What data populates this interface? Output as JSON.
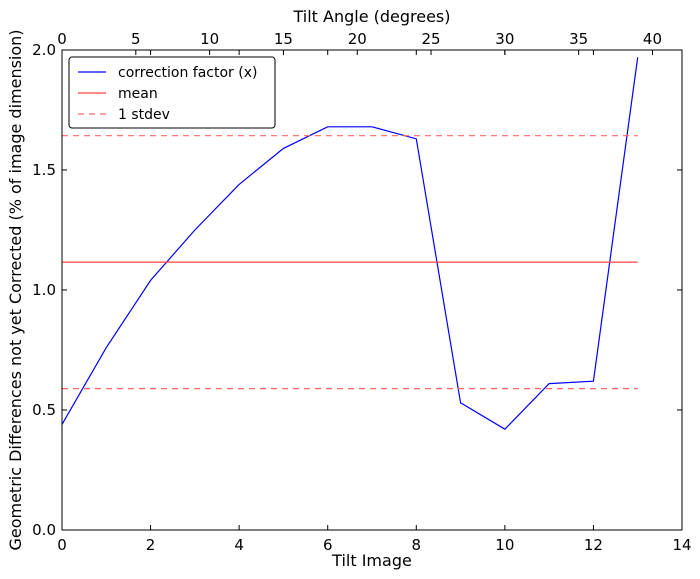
{
  "chart_data": {
    "type": "line",
    "xlabel": "Tilt Image",
    "ylabel": "Geometric Differences not yet Corrected (% of image dimension)",
    "top_xlabel": "Tilt Angle (degrees)",
    "xlim": [
      0,
      14
    ],
    "ylim": [
      0.0,
      2.0
    ],
    "top_xlim": [
      0,
      42
    ],
    "x_ticks": [
      0,
      2,
      4,
      6,
      8,
      10,
      12,
      14
    ],
    "x_tick_labels": [
      "0",
      "2",
      "4",
      "6",
      "8",
      "10",
      "12",
      "14"
    ],
    "y_ticks": [
      0.0,
      0.5,
      1.0,
      1.5,
      2.0
    ],
    "y_tick_labels": [
      "0.0",
      "0.5",
      "1.0",
      "1.5",
      "2.0"
    ],
    "top_x_ticks": [
      0,
      5,
      10,
      15,
      20,
      25,
      30,
      35,
      40
    ],
    "top_x_tick_labels": [
      "0",
      "5",
      "10",
      "15",
      "20",
      "25",
      "30",
      "35",
      "40"
    ],
    "grid": false,
    "legend_position": "top-left",
    "series": [
      {
        "name": "correction factor (x)",
        "style": "solid",
        "color": "#0000ff",
        "x": [
          0,
          1,
          2,
          3,
          4,
          5,
          6,
          7,
          8,
          9,
          10,
          11,
          12,
          13
        ],
        "values": [
          0.44,
          0.76,
          1.04,
          1.25,
          1.44,
          1.59,
          1.68,
          1.68,
          1.63,
          0.53,
          0.42,
          0.61,
          0.62,
          1.97
        ]
      },
      {
        "name": "mean",
        "style": "solid",
        "color": "#ff4444",
        "x": [
          0,
          13
        ],
        "values": [
          1.116,
          1.116
        ]
      },
      {
        "name": "1 stdev",
        "style": "dashed",
        "color": "#ff6666",
        "x": [
          0,
          13
        ],
        "values": [
          1.643,
          1.643
        ]
      },
      {
        "name": "",
        "style": "dashed",
        "color": "#ff6666",
        "x": [
          0,
          13
        ],
        "values": [
          0.589,
          0.589
        ]
      }
    ]
  }
}
